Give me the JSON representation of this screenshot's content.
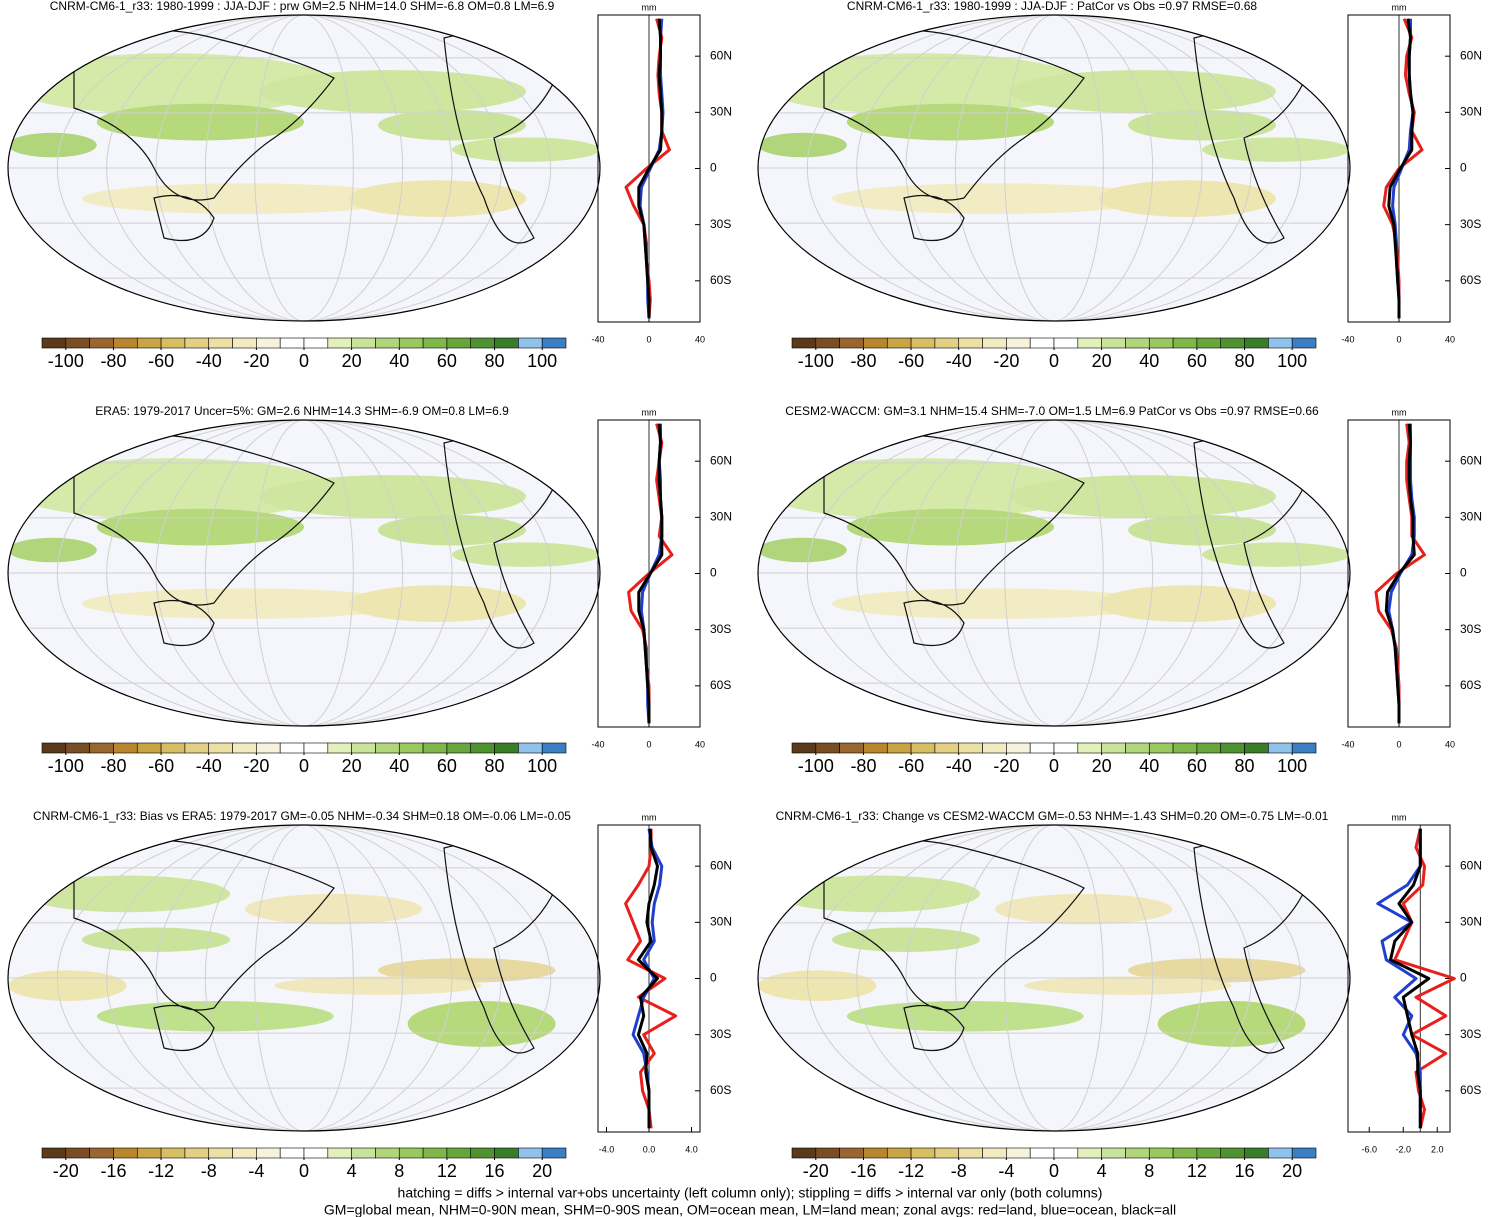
{
  "chart_data": [
    {
      "type": "map",
      "title": "CNRM-CM6-1_r33: 1980-1999 : JJA-DJF : prw GM=2.5 NHM=14.0 SHM=-6.8 OM=0.8 LM=6.9",
      "clim": [
        -110,
        110
      ],
      "cbar_ticks": [
        -100,
        -80,
        -60,
        -40,
        -20,
        0,
        20,
        40,
        60,
        80,
        100
      ],
      "colors": [
        "#5a3a1a",
        "#7a4e24",
        "#9a6630",
        "#b8862e",
        "#c9a444",
        "#d8be62",
        "#e3d084",
        "#ece0a4",
        "#f2ebc2",
        "#f6f2dc",
        "#ffffff",
        "#ffffff",
        "#e2f0bc",
        "#c9e39a",
        "#b0d57a",
        "#98c85e",
        "#7fb848",
        "#66a63a",
        "#4f9330",
        "#3a7d28",
        "#8fc3ec",
        "#3a7fc4"
      ]
    },
    {
      "type": "line",
      "xlabel": "mm",
      "xlim": [
        -40,
        40
      ],
      "xticks": [
        -40,
        0,
        40
      ],
      "ylim": [
        -82,
        82
      ],
      "yticks": [
        {
          "value": 60,
          "label": "60N"
        },
        {
          "value": 30,
          "label": "30N"
        },
        0,
        {
          "value": -30,
          "label": "30S"
        },
        {
          "value": -60,
          "label": "60S"
        }
      ],
      "lat": [
        -80,
        -70,
        -60,
        -50,
        -40,
        -30,
        -20,
        -10,
        0,
        10,
        20,
        30,
        40,
        50,
        60,
        70,
        80
      ],
      "series": [
        {
          "color": "#e8201c",
          "values": [
            0,
            1,
            0,
            -2,
            -2,
            -4,
            -12,
            -18,
            -2,
            16,
            10,
            10,
            8,
            7,
            8,
            10,
            6
          ]
        },
        {
          "color": "#1f3fd1",
          "values": [
            0,
            -1,
            -1,
            -2,
            -3,
            -4,
            -7,
            -6,
            1,
            8,
            10,
            11,
            10,
            9,
            9,
            9,
            10
          ]
        },
        {
          "color": "#000000",
          "values": [
            0,
            0,
            -1,
            -2,
            -3,
            -4,
            -8,
            -8,
            0,
            9,
            10,
            10,
            9,
            8,
            9,
            9,
            8
          ]
        }
      ]
    },
    {
      "type": "map",
      "title": "CNRM-CM6-1_r33: 1980-1999 : JJA-DJF : PatCor vs Obs =0.97 RMSE=0.68",
      "clim": [
        -110,
        110
      ],
      "cbar_ticks": [
        -100,
        -80,
        -60,
        -40,
        -20,
        0,
        20,
        40,
        60,
        80,
        100
      ],
      "colors": [
        "#5a3a1a",
        "#7a4e24",
        "#9a6630",
        "#b8862e",
        "#c9a444",
        "#d8be62",
        "#e3d084",
        "#ece0a4",
        "#f2ebc2",
        "#f6f2dc",
        "#ffffff",
        "#ffffff",
        "#e2f0bc",
        "#c9e39a",
        "#b0d57a",
        "#98c85e",
        "#7fb848",
        "#66a63a",
        "#4f9330",
        "#3a7d28",
        "#8fc3ec",
        "#3a7fc4"
      ]
    },
    {
      "type": "line",
      "xlabel": "mm",
      "xlim": [
        -40,
        40
      ],
      "xticks": [
        -40,
        0,
        40
      ],
      "ylim": [
        -82,
        82
      ],
      "yticks": [
        {
          "value": 60,
          "label": "60N"
        },
        {
          "value": 30,
          "label": "30N"
        },
        0,
        {
          "value": -30,
          "label": "30S"
        },
        {
          "value": -60,
          "label": "60S"
        }
      ],
      "lat": [
        -80,
        -70,
        -60,
        -50,
        -40,
        -30,
        -20,
        -10,
        0,
        10,
        20,
        30,
        40,
        50,
        60,
        70,
        80
      ],
      "series": [
        {
          "color": "#e8201c",
          "values": [
            0,
            0,
            0,
            -1,
            -2,
            -5,
            -12,
            -10,
            0,
            18,
            10,
            12,
            8,
            5,
            6,
            10,
            4
          ]
        },
        {
          "color": "#1f3fd1",
          "values": [
            0,
            0,
            -1,
            -2,
            -2,
            -3,
            -5,
            -4,
            2,
            8,
            9,
            11,
            9,
            8,
            8,
            9,
            9
          ]
        },
        {
          "color": "#000000",
          "values": [
            0,
            0,
            -1,
            -2,
            -3,
            -4,
            -8,
            -7,
            1,
            10,
            10,
            11,
            9,
            8,
            8,
            9,
            7
          ]
        }
      ]
    },
    {
      "type": "map",
      "title": "ERA5: 1979-2017 Uncer=5%: GM=2.6 NHM=14.3 SHM=-6.9 OM=0.8 LM=6.9",
      "clim": [
        -110,
        110
      ],
      "cbar_ticks": [
        -100,
        -80,
        -60,
        -40,
        -20,
        0,
        20,
        40,
        60,
        80,
        100
      ],
      "colors": [
        "#5a3a1a",
        "#7a4e24",
        "#9a6630",
        "#b8862e",
        "#c9a444",
        "#d8be62",
        "#e3d084",
        "#ece0a4",
        "#f2ebc2",
        "#f6f2dc",
        "#ffffff",
        "#ffffff",
        "#e2f0bc",
        "#c9e39a",
        "#b0d57a",
        "#98c85e",
        "#7fb848",
        "#66a63a",
        "#4f9330",
        "#3a7d28",
        "#8fc3ec",
        "#3a7fc4"
      ]
    },
    {
      "type": "line",
      "xlabel": "mm",
      "xlim": [
        -40,
        40
      ],
      "xticks": [
        -40,
        0,
        40
      ],
      "ylim": [
        -82,
        82
      ],
      "yticks": [
        {
          "value": 60,
          "label": "60N"
        },
        {
          "value": 30,
          "label": "30N"
        },
        0,
        {
          "value": -30,
          "label": "30S"
        },
        {
          "value": -60,
          "label": "60S"
        }
      ],
      "lat": [
        -80,
        -70,
        -60,
        -50,
        -40,
        -30,
        -20,
        -10,
        0,
        10,
        20,
        30,
        40,
        50,
        60,
        70,
        80
      ],
      "series": [
        {
          "color": "#e8201c",
          "values": [
            0,
            0,
            0,
            -2,
            -2,
            -5,
            -14,
            -16,
            0,
            18,
            8,
            10,
            8,
            6,
            8,
            10,
            6
          ]
        },
        {
          "color": "#1f3fd1",
          "values": [
            0,
            -1,
            -1,
            -2,
            -3,
            -4,
            -6,
            -5,
            1,
            8,
            10,
            10,
            9,
            9,
            8,
            9,
            9
          ]
        },
        {
          "color": "#000000",
          "values": [
            0,
            0,
            -1,
            -2,
            -3,
            -4,
            -8,
            -8,
            1,
            10,
            10,
            10,
            9,
            8,
            8,
            9,
            8
          ]
        }
      ]
    },
    {
      "type": "map",
      "title": "CESM2-WACCM: GM=3.1 NHM=15.4 SHM=-7.0 OM=1.5 LM=6.9 PatCor vs Obs =0.97 RMSE=0.66",
      "clim": [
        -110,
        110
      ],
      "cbar_ticks": [
        -100,
        -80,
        -60,
        -40,
        -20,
        0,
        20,
        40,
        60,
        80,
        100
      ],
      "colors": [
        "#5a3a1a",
        "#7a4e24",
        "#9a6630",
        "#b8862e",
        "#c9a444",
        "#d8be62",
        "#e3d084",
        "#ece0a4",
        "#f2ebc2",
        "#f6f2dc",
        "#ffffff",
        "#ffffff",
        "#e2f0bc",
        "#c9e39a",
        "#b0d57a",
        "#98c85e",
        "#7fb848",
        "#66a63a",
        "#4f9330",
        "#3a7d28",
        "#8fc3ec",
        "#3a7fc4"
      ]
    },
    {
      "type": "line",
      "xlabel": "mm",
      "xlim": [
        -40,
        40
      ],
      "xticks": [
        -40,
        0,
        40
      ],
      "ylim": [
        -82,
        82
      ],
      "yticks": [
        {
          "value": 60,
          "label": "60N"
        },
        {
          "value": 30,
          "label": "30N"
        },
        0,
        {
          "value": -30,
          "label": "30S"
        },
        {
          "value": -60,
          "label": "60S"
        }
      ],
      "lat": [
        -80,
        -70,
        -60,
        -50,
        -40,
        -30,
        -20,
        -10,
        0,
        10,
        20,
        30,
        40,
        50,
        60,
        70,
        80
      ],
      "series": [
        {
          "color": "#e8201c",
          "values": [
            0,
            0,
            0,
            -1,
            -2,
            -6,
            -16,
            -18,
            -2,
            20,
            10,
            10,
            8,
            6,
            6,
            8,
            6
          ]
        },
        {
          "color": "#1f3fd1",
          "values": [
            0,
            0,
            -1,
            -2,
            -3,
            -5,
            -8,
            -6,
            1,
            10,
            12,
            12,
            10,
            9,
            9,
            9,
            9
          ]
        },
        {
          "color": "#000000",
          "values": [
            0,
            0,
            -1,
            -2,
            -3,
            -5,
            -10,
            -9,
            0,
            12,
            11,
            11,
            9,
            8,
            8,
            9,
            8
          ]
        }
      ]
    },
    {
      "type": "map",
      "title": "CNRM-CM6-1_r33: Bias vs ERA5: 1979-2017 GM=-0.05 NHM=-0.34 SHM=0.18 OM=-0.06 LM=-0.05",
      "clim": [
        -22,
        22
      ],
      "cbar_ticks": [
        -20,
        -16,
        -12,
        -8,
        -4,
        0,
        4,
        8,
        12,
        16,
        20
      ],
      "colors": [
        "#5a3a1a",
        "#7a4e24",
        "#9a6630",
        "#b8862e",
        "#c9a444",
        "#d8be62",
        "#e3d084",
        "#ece0a4",
        "#f2ebc2",
        "#f6f2dc",
        "#ffffff",
        "#ffffff",
        "#e2f0bc",
        "#c9e39a",
        "#b0d57a",
        "#98c85e",
        "#7fb848",
        "#66a63a",
        "#4f9330",
        "#3a7d28",
        "#8fc3ec",
        "#3a7fc4"
      ]
    },
    {
      "type": "line",
      "xlabel": "mm",
      "xlim": [
        -4.8,
        4.8
      ],
      "xticks": [
        {
          "value": -4,
          "label": "-4.0"
        },
        {
          "value": 0,
          "label": "0.0"
        },
        {
          "value": 4,
          "label": "4.0"
        }
      ],
      "ylim": [
        -82,
        82
      ],
      "yticks": [
        {
          "value": 60,
          "label": "60N"
        },
        {
          "value": 30,
          "label": "30N"
        },
        0,
        {
          "value": -30,
          "label": "30S"
        },
        {
          "value": -60,
          "label": "60S"
        }
      ],
      "lat": [
        -80,
        -70,
        -60,
        -50,
        -40,
        -30,
        -20,
        -10,
        0,
        10,
        20,
        30,
        40,
        50,
        60,
        70,
        80
      ],
      "series": [
        {
          "color": "#e8201c",
          "values": [
            0.2,
            0,
            -0.6,
            -0.8,
            0.5,
            -0.5,
            2.5,
            -1,
            1.5,
            -2,
            -0.8,
            -1.5,
            -2.2,
            -1,
            0,
            0.2,
            0.2
          ]
        },
        {
          "color": "#1f3fd1",
          "values": [
            0,
            0,
            0,
            -0.2,
            -0.5,
            -1.5,
            -1,
            -0.5,
            0.5,
            -0.5,
            0.5,
            0.3,
            0.5,
            1,
            1.2,
            0.3,
            0
          ]
        },
        {
          "color": "#000000",
          "values": [
            0,
            0,
            0,
            -0.3,
            -0.2,
            -1,
            -0.5,
            -0.8,
            0.8,
            -1,
            0.2,
            -0.2,
            0,
            0.5,
            0.8,
            0.2,
            0.1
          ]
        }
      ]
    },
    {
      "type": "map",
      "title": "CNRM-CM6-1_r33: Change vs CESM2-WACCM GM=-0.53 NHM=-1.43 SHM=0.20 OM=-0.75 LM=-0.01",
      "clim": [
        -22,
        22
      ],
      "cbar_ticks": [
        -20,
        -16,
        -12,
        -8,
        -4,
        0,
        4,
        8,
        12,
        16,
        20
      ],
      "colors": [
        "#5a3a1a",
        "#7a4e24",
        "#9a6630",
        "#b8862e",
        "#c9a444",
        "#d8be62",
        "#e3d084",
        "#ece0a4",
        "#f2ebc2",
        "#f6f2dc",
        "#ffffff",
        "#ffffff",
        "#e2f0bc",
        "#c9e39a",
        "#b0d57a",
        "#98c85e",
        "#7fb848",
        "#66a63a",
        "#4f9330",
        "#3a7d28",
        "#8fc3ec",
        "#3a7fc4"
      ]
    },
    {
      "type": "line",
      "xlabel": "mm",
      "xlim": [
        -8.5,
        3.5
      ],
      "xticks": [
        {
          "value": -6,
          "label": "-6.0"
        },
        {
          "value": -2,
          "label": "-2.0"
        },
        {
          "value": 2,
          "label": "2.0"
        }
      ],
      "ylim": [
        -82,
        82
      ],
      "yticks": [
        {
          "value": 60,
          "label": "60N"
        },
        {
          "value": 30,
          "label": "30N"
        },
        0,
        {
          "value": -30,
          "label": "30S"
        },
        {
          "value": -60,
          "label": "60S"
        }
      ],
      "lat": [
        -80,
        -70,
        -60,
        -50,
        -40,
        -30,
        -20,
        -10,
        0,
        10,
        20,
        30,
        40,
        50,
        60,
        70,
        80
      ],
      "series": [
        {
          "color": "#e8201c",
          "values": [
            0,
            0.5,
            -0.2,
            -0.5,
            3,
            -1,
            3,
            -0.5,
            4,
            -3,
            -2,
            -1,
            -2,
            0.3,
            0.5,
            -0.5,
            0
          ]
        },
        {
          "color": "#1f3fd1",
          "values": [
            0,
            0,
            0,
            0,
            -0.5,
            -2,
            -1,
            -3,
            -0.5,
            -4,
            -4.5,
            -1,
            -5,
            -1.5,
            0,
            0,
            0
          ]
        },
        {
          "color": "#000000",
          "values": [
            0,
            0,
            0,
            -0.3,
            -0.3,
            -1,
            -1.5,
            -2,
            1,
            -3.5,
            -3,
            -1,
            -2.5,
            -0.8,
            0,
            0,
            0
          ]
        }
      ]
    }
  ],
  "footer": [
    "hatching = diffs > internal var+obs uncertainty (left column only); stippling = diffs > internal var only (both columns)",
    "GM=global mean, NHM=0-90N mean, SHM=0-90S mean, OM=ocean mean, LM=land mean; zonal avgs: red=land, blue=ocean, black=all"
  ]
}
